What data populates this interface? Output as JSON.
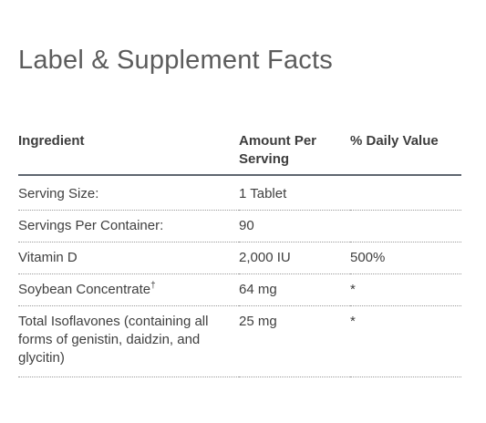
{
  "page": {
    "title": "Label & Supplement Facts"
  },
  "table": {
    "headers": [
      "Ingredient",
      "Amount Per Serving",
      "% Daily Value"
    ],
    "rows": [
      {
        "ingredient": "Serving Size:",
        "amount": "1 Tablet",
        "daily_value": ""
      },
      {
        "ingredient": "Servings Per Container:",
        "amount": "90",
        "daily_value": ""
      },
      {
        "ingredient": "Vitamin D",
        "amount": "2,000 IU",
        "daily_value": "500%"
      },
      {
        "ingredient": "Soybean Concentrate",
        "superscript": "†",
        "amount": "64 mg",
        "daily_value": "*"
      },
      {
        "ingredient": "Total Isoflavones (containing all forms of genistin, daidzin, and glycitin)",
        "amount": "25 mg",
        "daily_value": "*"
      }
    ]
  }
}
